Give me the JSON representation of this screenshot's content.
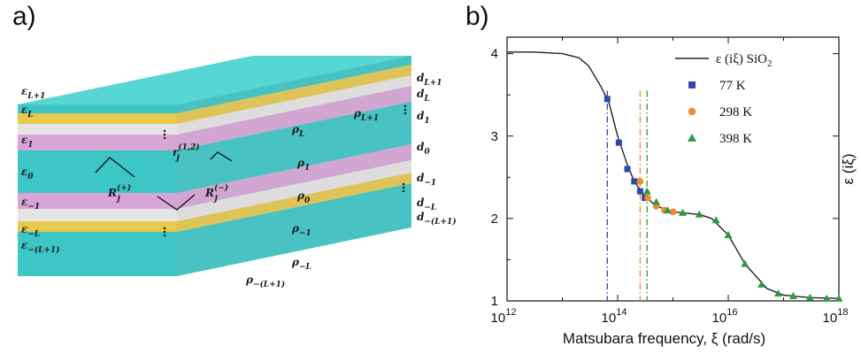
{
  "panel_a": {
    "label": "a)",
    "left_labels": [
      {
        "name": "ε",
        "sub": "L+1"
      },
      {
        "name": "ε",
        "sub": "L"
      },
      {
        "name": "ε",
        "sub": "1"
      },
      {
        "name": "ε",
        "sub": "0"
      },
      {
        "name": "ε",
        "sub": "−1"
      },
      {
        "name": "ε",
        "sub": "−L"
      },
      {
        "name": "ε",
        "sub": "−(L+1)"
      }
    ],
    "rho_labels": [
      {
        "name": "ρ",
        "sub": "L+1"
      },
      {
        "name": "ρ",
        "sub": "L"
      },
      {
        "name": "ρ",
        "sub": "1"
      },
      {
        "name": "ρ",
        "sub": "0"
      },
      {
        "name": "ρ",
        "sub": "−1"
      },
      {
        "name": "ρ",
        "sub": "−L"
      },
      {
        "name": "ρ",
        "sub": "−(L+1)"
      }
    ],
    "d_labels": [
      {
        "name": "d",
        "sub": "L+1"
      },
      {
        "name": "d",
        "sub": "L"
      },
      {
        "name": "d",
        "sub": "1"
      },
      {
        "name": "d",
        "sub": "0"
      },
      {
        "name": "d",
        "sub": "−1"
      },
      {
        "name": "d",
        "sub": "−L"
      },
      {
        "name": "d",
        "sub": "−(L+1)"
      }
    ],
    "r_label": {
      "name": "r",
      "sub": "j",
      "sup": "(1,2)"
    },
    "R_plus": {
      "name": "R",
      "sub": "j",
      "sup": "(+)"
    },
    "R_minus": {
      "name": "R",
      "sub": "j",
      "sup": "(−)"
    },
    "colors": {
      "teal": "#3cc6c6",
      "teal_top": "#56d6d4",
      "gold": "#e6c94e",
      "light": "#e4e4e4",
      "pink": "#d7a6d6"
    }
  },
  "panel_b": {
    "label": "b)",
    "chart_data": {
      "type": "line",
      "xlabel": "Matsubara frequency, ξ (rad/s)",
      "ylabel": "ε (iξ)",
      "x_scale": "log",
      "xlim": [
        1000000000000.0,
        1e+18
      ],
      "ylim": [
        1,
        4.2
      ],
      "x_tick_labels": [
        "10",
        "10",
        "10",
        "10",
        "10",
        "10",
        "10"
      ],
      "x_tick_exponents": [
        "12",
        "14",
        "16",
        "18"
      ],
      "y_tick_labels": [
        "1",
        "2",
        "3",
        "4"
      ],
      "legend_position": "top-right",
      "vertical_lines": [
        {
          "x": 65000000000000.0,
          "color": "#2f47a8",
          "style": "dash-dot"
        },
        {
          "x": 255000000000000.0,
          "color": "#f08a2a",
          "style": "dash-dot"
        },
        {
          "x": 340000000000000.0,
          "color": "#2e9a3c",
          "style": "dash-dot"
        }
      ],
      "series": [
        {
          "name": "ε (iξ) SiO",
          "name_sub": "2",
          "kind": "line",
          "color": "#222222",
          "x": [
            1000000000000.0,
            3000000000000.0,
            10000000000000.0,
            20000000000000.0,
            30000000000000.0,
            50000000000000.0,
            70000000000000.0,
            100000000000000.0,
            150000000000000.0,
            200000000000000.0,
            300000000000000.0,
            500000000000000.0,
            1000000000000000.0,
            2000000000000000.0,
            3000000000000000.0,
            5000000000000000.0,
            1e+16,
            2e+16,
            5e+16,
            1e+17,
            3e+17,
            1e+18
          ],
          "y": [
            4.02,
            4.02,
            4.0,
            3.95,
            3.85,
            3.6,
            3.4,
            3.0,
            2.65,
            2.45,
            2.28,
            2.15,
            2.08,
            2.06,
            2.05,
            2.0,
            1.8,
            1.45,
            1.15,
            1.07,
            1.04,
            1.03
          ]
        },
        {
          "name": "77 K",
          "kind": "square",
          "color": "#2f47a8",
          "x": [
            65000000000000.0,
            105000000000000.0,
            150000000000000.0,
            200000000000000.0,
            255000000000000.0,
            310000000000000.0
          ],
          "y": [
            3.45,
            2.92,
            2.6,
            2.45,
            2.33,
            2.25
          ]
        },
        {
          "name": "298 K",
          "kind": "circle",
          "color": "#f08a2a",
          "x": [
            255000000000000.0,
            350000000000000.0,
            500000000000000.0,
            700000000000000.0,
            1000000000000000.0
          ],
          "y": [
            2.45,
            2.25,
            2.15,
            2.1,
            2.08
          ]
        },
        {
          "name": "398 K",
          "kind": "triangle",
          "color": "#2e9a3c",
          "x": [
            340000000000000.0,
            500000000000000.0,
            800000000000000.0,
            1500000000000000.0,
            3000000000000000.0,
            6000000000000000.0,
            1e+16,
            2e+16,
            4e+16,
            8e+16,
            1.5e+17,
            3e+17,
            6e+17,
            1e+18
          ],
          "y": [
            2.33,
            2.2,
            2.1,
            2.07,
            2.05,
            1.98,
            1.8,
            1.45,
            1.2,
            1.09,
            1.06,
            1.04,
            1.03,
            1.03
          ]
        }
      ]
    }
  }
}
